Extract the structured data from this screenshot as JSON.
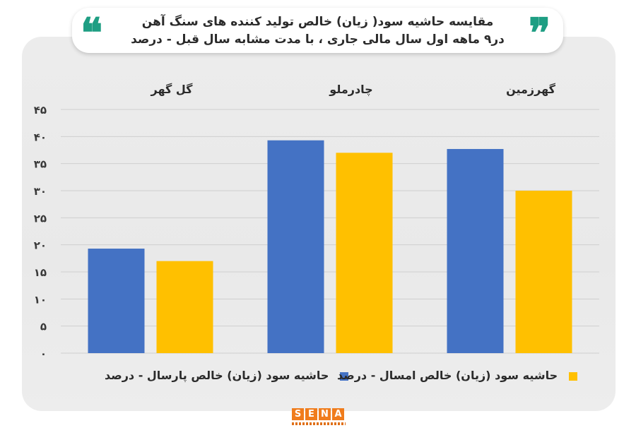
{
  "title": {
    "line1": "مقایسه حاشیه سود( زیان) خالص تولید کننده های سنگ آهن",
    "line2": "در۹ ماهه  اول سال مالی جاری ، با مدت مشابه سال قبل  -  درصد"
  },
  "quotes": {
    "open": "❝",
    "close": "❞"
  },
  "colors": {
    "accent": "#1e9e83",
    "series1": "#4472c4",
    "series2": "#ffc000",
    "logo": "#f07c1c"
  },
  "logo": {
    "letters": [
      "S",
      "E",
      "N",
      "A"
    ]
  },
  "chart_data": {
    "type": "bar",
    "categories": [
      "گل گهر",
      "چادرملو",
      "گهرزمین"
    ],
    "series": [
      {
        "name": "حاشیه سود (زیان) خالص پارسال - درصد",
        "values": [
          19.3,
          39.3,
          37.7
        ]
      },
      {
        "name": "حاشیه سود (زیان) خالص امسال - درصد",
        "values": [
          17,
          37,
          30
        ]
      }
    ],
    "yticks": [
      "۰",
      "۵",
      "۱۰",
      "۱۵",
      "۲۰",
      "۲۵",
      "۳۰",
      "۳۵",
      "۴۰",
      "۴۵"
    ],
    "ylim": [
      0,
      45
    ],
    "grid": true,
    "legend": "bottom"
  },
  "legend_items": [
    {
      "label": "حاشیه سود (زیان) خالص پارسال - درصد"
    },
    {
      "label": "حاشیه سود (زیان) خالص امسال - درصد"
    }
  ]
}
